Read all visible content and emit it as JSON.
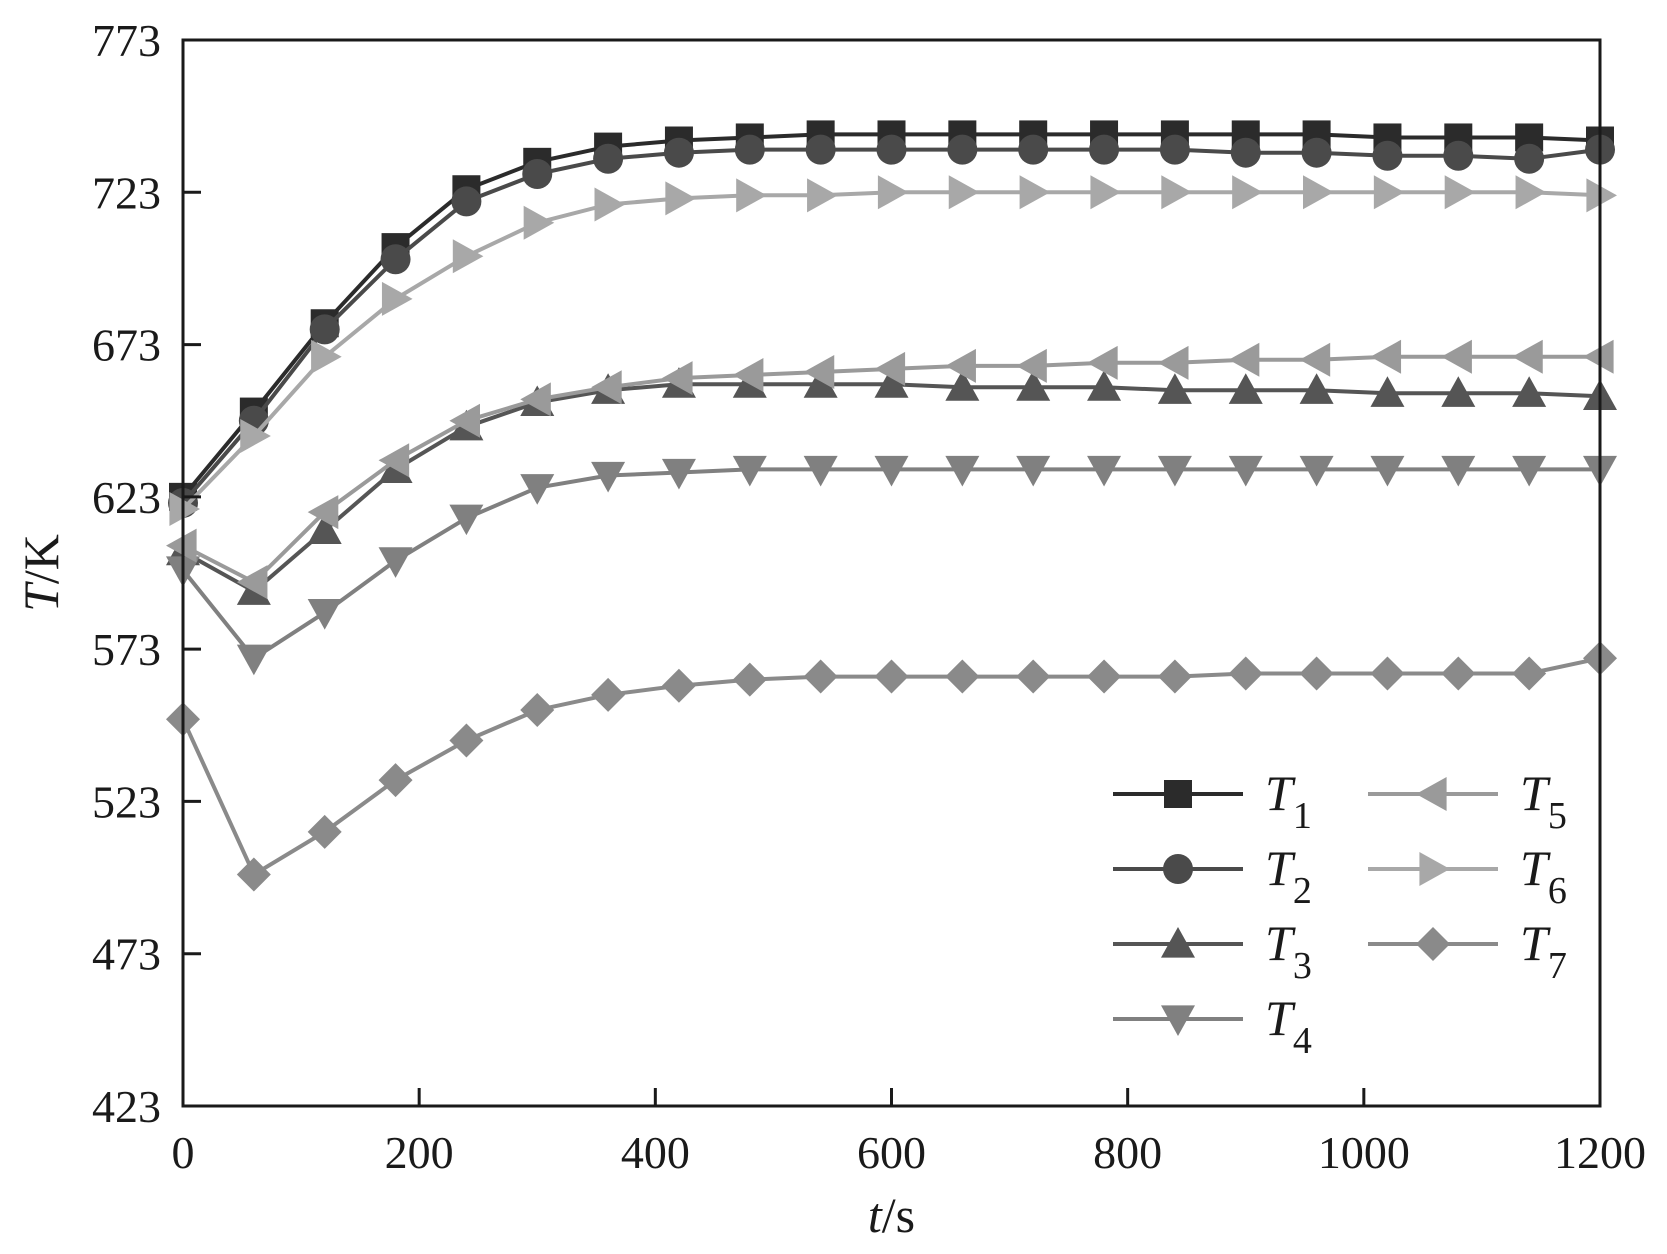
{
  "chart_data": {
    "type": "line",
    "xlabel": {
      "var": "t",
      "unit": "/s"
    },
    "ylabel": {
      "var": "T",
      "unit": "/K"
    },
    "xlim": [
      0,
      1200
    ],
    "ylim": [
      423,
      773
    ],
    "xticks": [
      "0",
      "200",
      "400",
      "600",
      "800",
      "1000",
      "1200"
    ],
    "yticks": [
      "423",
      "473",
      "523",
      "573",
      "623",
      "673",
      "723",
      "773"
    ],
    "grid": false,
    "legend_position": "bottom-right",
    "series": [
      {
        "name": "T",
        "sub": "1",
        "marker": "square",
        "color": "#2b2b2b",
        "x": [
          0,
          60,
          120,
          180,
          240,
          300,
          360,
          420,
          480,
          540,
          600,
          660,
          720,
          780,
          840,
          900,
          960,
          1020,
          1080,
          1140,
          1200
        ],
        "y": [
          623,
          651,
          680,
          705,
          724,
          733,
          738,
          740,
          741,
          742,
          742,
          742,
          742,
          742,
          742,
          742,
          742,
          741,
          741,
          741,
          740
        ]
      },
      {
        "name": "T",
        "sub": "2",
        "marker": "circle",
        "color": "#4a4a4a",
        "x": [
          0,
          60,
          120,
          180,
          240,
          300,
          360,
          420,
          480,
          540,
          600,
          660,
          720,
          780,
          840,
          900,
          960,
          1020,
          1080,
          1140,
          1200
        ],
        "y": [
          621,
          648,
          678,
          701,
          720,
          729,
          734,
          736,
          737,
          737,
          737,
          737,
          737,
          737,
          737,
          736,
          736,
          735,
          735,
          734,
          737
        ]
      },
      {
        "name": "T",
        "sub": "3",
        "marker": "triangle-up",
        "color": "#555555",
        "x": [
          0,
          60,
          120,
          180,
          240,
          300,
          360,
          420,
          480,
          540,
          600,
          660,
          720,
          780,
          840,
          900,
          960,
          1020,
          1080,
          1140,
          1200
        ],
        "y": [
          605,
          592,
          612,
          632,
          646,
          654,
          658,
          660,
          660,
          660,
          660,
          659,
          659,
          659,
          658,
          658,
          658,
          657,
          657,
          657,
          656
        ]
      },
      {
        "name": "T",
        "sub": "4",
        "marker": "triangle-down",
        "color": "#808080",
        "x": [
          0,
          60,
          120,
          180,
          240,
          300,
          360,
          420,
          480,
          540,
          600,
          660,
          720,
          780,
          840,
          900,
          960,
          1020,
          1080,
          1140,
          1200
        ],
        "y": [
          599,
          570,
          585,
          602,
          616,
          626,
          630,
          631,
          632,
          632,
          632,
          632,
          632,
          632,
          632,
          632,
          632,
          632,
          632,
          632,
          632
        ]
      },
      {
        "name": "T",
        "sub": "5",
        "marker": "triangle-left",
        "color": "#9a9a9a",
        "x": [
          0,
          60,
          120,
          180,
          240,
          300,
          360,
          420,
          480,
          540,
          600,
          660,
          720,
          780,
          840,
          900,
          960,
          1020,
          1080,
          1140,
          1200
        ],
        "y": [
          607,
          595,
          618,
          635,
          648,
          655,
          659,
          662,
          663,
          664,
          665,
          666,
          666,
          667,
          667,
          668,
          668,
          669,
          669,
          669,
          669
        ]
      },
      {
        "name": "T",
        "sub": "6",
        "marker": "triangle-right",
        "color": "#a8a8a8",
        "x": [
          0,
          60,
          120,
          180,
          240,
          300,
          360,
          420,
          480,
          540,
          600,
          660,
          720,
          780,
          840,
          900,
          960,
          1020,
          1080,
          1140,
          1200
        ],
        "y": [
          619,
          643,
          669,
          688,
          702,
          713,
          719,
          721,
          722,
          722,
          723,
          723,
          723,
          723,
          723,
          723,
          723,
          723,
          723,
          723,
          722
        ]
      },
      {
        "name": "T",
        "sub": "7",
        "marker": "diamond",
        "color": "#8a8a8a",
        "x": [
          0,
          60,
          120,
          180,
          240,
          300,
          360,
          420,
          480,
          540,
          600,
          660,
          720,
          780,
          840,
          900,
          960,
          1020,
          1080,
          1140,
          1200
        ],
        "y": [
          550,
          499,
          513,
          530,
          543,
          553,
          558,
          561,
          563,
          564,
          564,
          564,
          564,
          564,
          564,
          565,
          565,
          565,
          565,
          565,
          570
        ]
      }
    ]
  }
}
